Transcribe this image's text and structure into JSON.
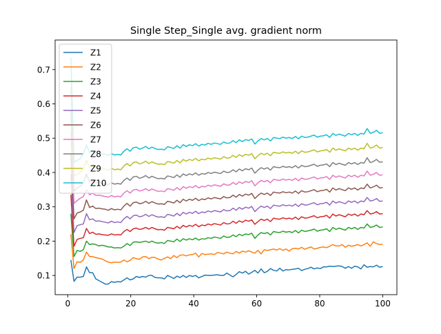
{
  "chart_data": {
    "type": "line",
    "title": "Single Step_Single avg. gradient norm",
    "xlabel": "",
    "ylabel": "",
    "xlim": [
      -4,
      104.5
    ],
    "ylim": [
      0.044,
      0.786
    ],
    "x_ticks": [
      0,
      20,
      40,
      60,
      80,
      100
    ],
    "y_ticks": [
      0.1,
      0.2,
      0.3,
      0.4,
      0.5,
      0.6,
      0.7
    ],
    "grid": false,
    "legend_position": "top-left",
    "x_start": 1,
    "x_end": 100,
    "series": [
      {
        "name": "Z1",
        "color": "#1f77b4",
        "start": 0.145,
        "values": [
          0.083,
          0.095,
          0.095,
          0.097,
          0.125,
          0.108,
          0.108,
          0.09,
          0.085,
          0.08,
          0.075,
          0.075,
          0.082,
          0.08,
          0.082,
          0.081,
          0.087,
          0.093,
          0.087,
          0.09,
          0.097,
          0.094,
          0.097,
          0.095,
          0.1,
          0.1,
          0.094,
          0.093,
          0.093,
          0.09,
          0.1,
          0.096,
          0.091,
          0.098,
          0.094,
          0.1,
          0.094,
          0.1,
          0.097,
          0.1,
          0.093,
          0.097,
          0.101,
          0.1,
          0.1,
          0.101,
          0.102,
          0.1,
          0.1,
          0.107,
          0.101,
          0.096,
          0.103,
          0.111,
          0.107,
          0.112,
          0.104,
          0.109,
          0.115,
          0.107,
          0.119,
          0.108,
          0.112,
          0.12,
          0.115,
          0.113,
          0.121,
          0.113,
          0.117,
          0.116,
          0.118,
          0.119,
          0.121,
          0.114,
          0.118,
          0.12,
          0.124,
          0.119,
          0.122,
          0.12,
          0.125,
          0.125,
          0.127,
          0.126,
          0.127,
          0.128,
          0.126,
          0.121,
          0.126,
          0.121,
          0.127,
          0.125,
          0.119,
          0.131,
          0.124,
          0.126,
          0.125,
          0.13,
          0.124,
          0.126
        ]
      },
      {
        "name": "Z2",
        "color": "#ff7f0e",
        "start": 0.22,
        "values": [
          0.12,
          0.14,
          0.138,
          0.145,
          0.168,
          0.155,
          0.155,
          0.152,
          0.15,
          0.148,
          0.143,
          0.139,
          0.137,
          0.139,
          0.138,
          0.139,
          0.145,
          0.14,
          0.144,
          0.152,
          0.149,
          0.147,
          0.154,
          0.155,
          0.149,
          0.153,
          0.152,
          0.148,
          0.145,
          0.15,
          0.154,
          0.149,
          0.158,
          0.152,
          0.159,
          0.16,
          0.157,
          0.16,
          0.161,
          0.165,
          0.154,
          0.164,
          0.161,
          0.162,
          0.163,
          0.161,
          0.167,
          0.165,
          0.163,
          0.168,
          0.165,
          0.163,
          0.17,
          0.165,
          0.171,
          0.168,
          0.172,
          0.168,
          0.165,
          0.173,
          0.163,
          0.175,
          0.173,
          0.175,
          0.177,
          0.174,
          0.178,
          0.173,
          0.177,
          0.171,
          0.178,
          0.179,
          0.177,
          0.182,
          0.176,
          0.18,
          0.183,
          0.177,
          0.179,
          0.182,
          0.183,
          0.181,
          0.185,
          0.19,
          0.186,
          0.186,
          0.19,
          0.182,
          0.188,
          0.185,
          0.187,
          0.19,
          0.186,
          0.19,
          0.195,
          0.185,
          0.198,
          0.193,
          0.19,
          0.191
        ]
      },
      {
        "name": "Z3",
        "color": "#2ca02c",
        "start": 0.28,
        "values": [
          0.155,
          0.173,
          0.17,
          0.175,
          0.2,
          0.19,
          0.192,
          0.19,
          0.186,
          0.188,
          0.186,
          0.183,
          0.183,
          0.18,
          0.181,
          0.18,
          0.185,
          0.193,
          0.187,
          0.197,
          0.198,
          0.196,
          0.198,
          0.2,
          0.196,
          0.2,
          0.196,
          0.194,
          0.196,
          0.193,
          0.202,
          0.2,
          0.198,
          0.206,
          0.199,
          0.207,
          0.203,
          0.207,
          0.204,
          0.209,
          0.203,
          0.207,
          0.206,
          0.21,
          0.208,
          0.212,
          0.21,
          0.208,
          0.215,
          0.211,
          0.212,
          0.218,
          0.213,
          0.22,
          0.216,
          0.221,
          0.219,
          0.223,
          0.208,
          0.218,
          0.225,
          0.222,
          0.225,
          0.218,
          0.228,
          0.226,
          0.225,
          0.229,
          0.226,
          0.228,
          0.225,
          0.231,
          0.224,
          0.232,
          0.228,
          0.23,
          0.232,
          0.235,
          0.229,
          0.232,
          0.233,
          0.236,
          0.228,
          0.24,
          0.234,
          0.238,
          0.235,
          0.232,
          0.24,
          0.236,
          0.24,
          0.234,
          0.24,
          0.238,
          0.25,
          0.24,
          0.242,
          0.247,
          0.24,
          0.241
        ]
      },
      {
        "name": "Z4",
        "color": "#d62728",
        "start": 0.335,
        "values": [
          0.185,
          0.205,
          0.208,
          0.21,
          0.237,
          0.222,
          0.226,
          0.22,
          0.221,
          0.219,
          0.218,
          0.217,
          0.221,
          0.218,
          0.219,
          0.218,
          0.228,
          0.234,
          0.228,
          0.236,
          0.238,
          0.234,
          0.236,
          0.24,
          0.235,
          0.24,
          0.236,
          0.233,
          0.234,
          0.232,
          0.24,
          0.238,
          0.236,
          0.243,
          0.237,
          0.246,
          0.241,
          0.246,
          0.243,
          0.249,
          0.242,
          0.247,
          0.245,
          0.25,
          0.247,
          0.251,
          0.249,
          0.247,
          0.254,
          0.25,
          0.251,
          0.258,
          0.252,
          0.259,
          0.255,
          0.261,
          0.258,
          0.262,
          0.249,
          0.257,
          0.264,
          0.26,
          0.264,
          0.257,
          0.267,
          0.265,
          0.264,
          0.268,
          0.265,
          0.267,
          0.264,
          0.27,
          0.263,
          0.271,
          0.267,
          0.268,
          0.271,
          0.274,
          0.268,
          0.271,
          0.272,
          0.275,
          0.267,
          0.279,
          0.273,
          0.277,
          0.274,
          0.271,
          0.279,
          0.275,
          0.279,
          0.273,
          0.279,
          0.277,
          0.289,
          0.279,
          0.281,
          0.286,
          0.279,
          0.28
        ]
      },
      {
        "name": "Z5",
        "color": "#9467bd",
        "start": 0.395,
        "values": [
          0.225,
          0.245,
          0.248,
          0.25,
          0.28,
          0.262,
          0.265,
          0.258,
          0.259,
          0.257,
          0.255,
          0.253,
          0.258,
          0.254,
          0.256,
          0.254,
          0.265,
          0.272,
          0.265,
          0.274,
          0.276,
          0.271,
          0.273,
          0.278,
          0.272,
          0.277,
          0.273,
          0.27,
          0.271,
          0.269,
          0.278,
          0.276,
          0.273,
          0.281,
          0.274,
          0.284,
          0.279,
          0.284,
          0.281,
          0.287,
          0.28,
          0.285,
          0.283,
          0.288,
          0.285,
          0.289,
          0.287,
          0.285,
          0.292,
          0.288,
          0.289,
          0.296,
          0.29,
          0.298,
          0.293,
          0.299,
          0.296,
          0.301,
          0.286,
          0.295,
          0.302,
          0.298,
          0.302,
          0.295,
          0.305,
          0.303,
          0.302,
          0.306,
          0.303,
          0.305,
          0.302,
          0.308,
          0.301,
          0.309,
          0.305,
          0.306,
          0.309,
          0.312,
          0.306,
          0.309,
          0.31,
          0.313,
          0.305,
          0.317,
          0.311,
          0.315,
          0.312,
          0.309,
          0.317,
          0.313,
          0.317,
          0.311,
          0.317,
          0.315,
          0.327,
          0.317,
          0.319,
          0.324,
          0.316,
          0.317
        ]
      },
      {
        "name": "Z6",
        "color": "#8c564b",
        "start": 0.455,
        "values": [
          0.265,
          0.282,
          0.285,
          0.29,
          0.32,
          0.298,
          0.302,
          0.295,
          0.296,
          0.294,
          0.293,
          0.29,
          0.295,
          0.291,
          0.293,
          0.291,
          0.302,
          0.31,
          0.302,
          0.312,
          0.314,
          0.309,
          0.311,
          0.316,
          0.31,
          0.315,
          0.311,
          0.308,
          0.309,
          0.307,
          0.316,
          0.314,
          0.311,
          0.319,
          0.312,
          0.322,
          0.317,
          0.322,
          0.319,
          0.325,
          0.318,
          0.323,
          0.321,
          0.326,
          0.323,
          0.327,
          0.325,
          0.323,
          0.33,
          0.326,
          0.327,
          0.334,
          0.328,
          0.336,
          0.331,
          0.337,
          0.334,
          0.339,
          0.324,
          0.333,
          0.34,
          0.336,
          0.34,
          0.333,
          0.343,
          0.341,
          0.34,
          0.344,
          0.341,
          0.343,
          0.34,
          0.346,
          0.339,
          0.347,
          0.343,
          0.344,
          0.347,
          0.35,
          0.344,
          0.347,
          0.348,
          0.351,
          0.343,
          0.355,
          0.349,
          0.353,
          0.35,
          0.347,
          0.355,
          0.351,
          0.355,
          0.349,
          0.355,
          0.353,
          0.366,
          0.355,
          0.358,
          0.363,
          0.355,
          0.356
        ]
      },
      {
        "name": "Z7",
        "color": "#e377c2",
        "start": 0.52,
        "values": [
          0.31,
          0.318,
          0.325,
          0.33,
          0.35,
          0.335,
          0.34,
          0.333,
          0.334,
          0.332,
          0.33,
          0.328,
          0.333,
          0.329,
          0.331,
          0.329,
          0.34,
          0.347,
          0.34,
          0.349,
          0.351,
          0.346,
          0.348,
          0.353,
          0.347,
          0.352,
          0.348,
          0.345,
          0.346,
          0.344,
          0.353,
          0.351,
          0.348,
          0.356,
          0.349,
          0.359,
          0.354,
          0.359,
          0.356,
          0.362,
          0.355,
          0.36,
          0.358,
          0.363,
          0.36,
          0.364,
          0.362,
          0.36,
          0.367,
          0.363,
          0.364,
          0.371,
          0.365,
          0.373,
          0.368,
          0.374,
          0.371,
          0.376,
          0.361,
          0.37,
          0.377,
          0.373,
          0.377,
          0.37,
          0.38,
          0.378,
          0.377,
          0.381,
          0.378,
          0.38,
          0.377,
          0.383,
          0.376,
          0.384,
          0.38,
          0.381,
          0.384,
          0.387,
          0.381,
          0.384,
          0.385,
          0.388,
          0.38,
          0.392,
          0.386,
          0.39,
          0.387,
          0.384,
          0.392,
          0.388,
          0.392,
          0.386,
          0.392,
          0.39,
          0.404,
          0.392,
          0.395,
          0.4,
          0.392,
          0.393
        ]
      },
      {
        "name": "Z8",
        "color": "#7f7f7f",
        "start": 0.58,
        "values": [
          0.345,
          0.355,
          0.36,
          0.37,
          0.395,
          0.372,
          0.378,
          0.37,
          0.371,
          0.369,
          0.367,
          0.365,
          0.37,
          0.366,
          0.368,
          0.366,
          0.377,
          0.384,
          0.377,
          0.387,
          0.389,
          0.383,
          0.386,
          0.391,
          0.384,
          0.389,
          0.385,
          0.382,
          0.383,
          0.381,
          0.39,
          0.388,
          0.385,
          0.393,
          0.386,
          0.396,
          0.391,
          0.396,
          0.393,
          0.399,
          0.392,
          0.397,
          0.395,
          0.4,
          0.397,
          0.401,
          0.399,
          0.397,
          0.404,
          0.4,
          0.401,
          0.408,
          0.402,
          0.41,
          0.405,
          0.411,
          0.408,
          0.413,
          0.398,
          0.407,
          0.414,
          0.41,
          0.414,
          0.407,
          0.417,
          0.415,
          0.414,
          0.418,
          0.415,
          0.417,
          0.414,
          0.42,
          0.413,
          0.421,
          0.417,
          0.418,
          0.421,
          0.424,
          0.418,
          0.421,
          0.422,
          0.425,
          0.417,
          0.429,
          0.423,
          0.427,
          0.424,
          0.421,
          0.429,
          0.425,
          0.429,
          0.423,
          0.429,
          0.427,
          0.443,
          0.429,
          0.432,
          0.438,
          0.43,
          0.431
        ]
      },
      {
        "name": "Z9",
        "color": "#bcbd22",
        "start": 0.65,
        "values": [
          0.39,
          0.395,
          0.4,
          0.41,
          0.435,
          0.415,
          0.42,
          0.412,
          0.413,
          0.411,
          0.41,
          0.407,
          0.412,
          0.408,
          0.41,
          0.408,
          0.419,
          0.426,
          0.419,
          0.429,
          0.431,
          0.425,
          0.428,
          0.433,
          0.426,
          0.431,
          0.427,
          0.424,
          0.425,
          0.423,
          0.432,
          0.43,
          0.427,
          0.435,
          0.428,
          0.438,
          0.433,
          0.438,
          0.435,
          0.441,
          0.434,
          0.439,
          0.437,
          0.442,
          0.439,
          0.443,
          0.441,
          0.439,
          0.446,
          0.442,
          0.443,
          0.45,
          0.444,
          0.452,
          0.447,
          0.453,
          0.45,
          0.455,
          0.44,
          0.449,
          0.456,
          0.452,
          0.456,
          0.449,
          0.459,
          0.457,
          0.456,
          0.46,
          0.457,
          0.459,
          0.456,
          0.462,
          0.455,
          0.463,
          0.459,
          0.46,
          0.463,
          0.466,
          0.46,
          0.463,
          0.464,
          0.467,
          0.459,
          0.471,
          0.465,
          0.469,
          0.466,
          0.463,
          0.471,
          0.467,
          0.471,
          0.465,
          0.471,
          0.469,
          0.485,
          0.471,
          0.474,
          0.48,
          0.471,
          0.473
        ]
      },
      {
        "name": "Z10",
        "color": "#17becf",
        "start": 0.735,
        "values": [
          0.43,
          0.435,
          0.44,
          0.455,
          0.48,
          0.458,
          0.463,
          0.455,
          0.456,
          0.454,
          0.453,
          0.45,
          0.455,
          0.451,
          0.453,
          0.451,
          0.462,
          0.469,
          0.462,
          0.472,
          0.474,
          0.468,
          0.471,
          0.476,
          0.469,
          0.474,
          0.47,
          0.467,
          0.468,
          0.466,
          0.475,
          0.473,
          0.47,
          0.478,
          0.471,
          0.481,
          0.476,
          0.481,
          0.478,
          0.484,
          0.477,
          0.482,
          0.48,
          0.485,
          0.482,
          0.486,
          0.484,
          0.482,
          0.489,
          0.485,
          0.486,
          0.493,
          0.487,
          0.495,
          0.49,
          0.496,
          0.493,
          0.498,
          0.483,
          0.492,
          0.499,
          0.495,
          0.499,
          0.492,
          0.502,
          0.5,
          0.499,
          0.503,
          0.5,
          0.502,
          0.499,
          0.505,
          0.498,
          0.506,
          0.502,
          0.503,
          0.506,
          0.509,
          0.503,
          0.506,
          0.507,
          0.51,
          0.502,
          0.514,
          0.508,
          0.512,
          0.509,
          0.506,
          0.514,
          0.51,
          0.514,
          0.508,
          0.514,
          0.512,
          0.528,
          0.514,
          0.517,
          0.523,
          0.514,
          0.516
        ]
      }
    ]
  }
}
